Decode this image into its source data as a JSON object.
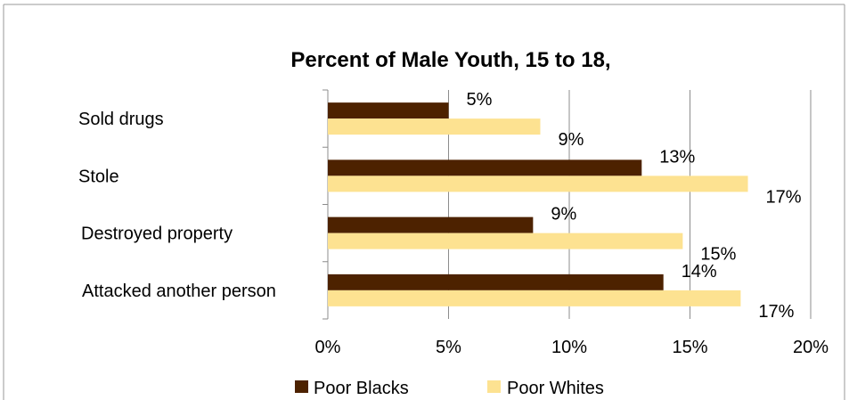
{
  "chart_data": {
    "type": "bar",
    "orientation": "horizontal",
    "title": "Percent of Male Youth, 15 to 18,",
    "categories": [
      "Sold drugs",
      "Stole",
      "Destroyed property",
      "Attacked another person"
    ],
    "series": [
      {
        "name": "Poor Blacks",
        "color": "#4d2200",
        "values": [
          5,
          13,
          8.5,
          13.9
        ],
        "labels": [
          "5%",
          "13%",
          "9%",
          "14%"
        ]
      },
      {
        "name": "Poor Whites",
        "color": "#fde291",
        "values": [
          8.8,
          17.4,
          14.7,
          17.1
        ],
        "labels": [
          "9%",
          "17%",
          "15%",
          "17%"
        ]
      }
    ],
    "xlim": [
      0,
      20
    ],
    "xticks": [
      "0%",
      "5%",
      "10%",
      "15%",
      "20%"
    ],
    "grid": "vertical",
    "legend": "bottom"
  }
}
